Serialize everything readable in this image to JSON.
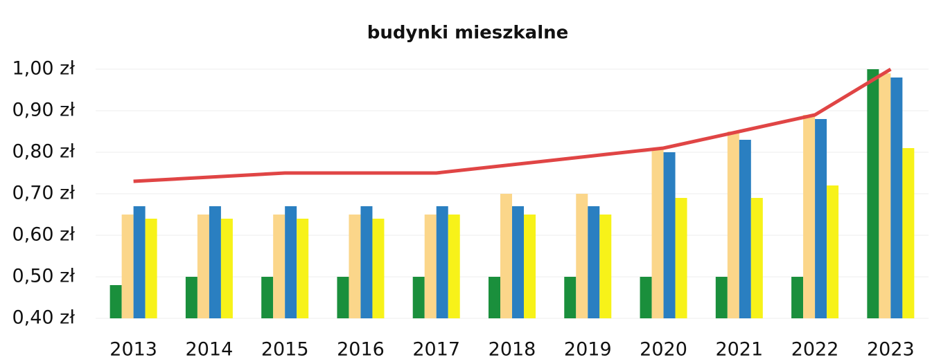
{
  "chart_data": {
    "type": "bar",
    "title": "budynki mieszkalne",
    "categories": [
      "2013",
      "2014",
      "2015",
      "2016",
      "2017",
      "2018",
      "2019",
      "2020",
      "2021",
      "2022",
      "2023"
    ],
    "series": [
      {
        "color": "#1a8f3c",
        "values": [
          0.48,
          0.5,
          0.5,
          0.5,
          0.5,
          0.5,
          0.5,
          0.5,
          0.5,
          0.5,
          1.0
        ]
      },
      {
        "color": "#fbd68a",
        "values": [
          0.65,
          0.65,
          0.65,
          0.65,
          0.65,
          0.7,
          0.7,
          0.81,
          0.85,
          0.89,
          0.99
        ]
      },
      {
        "color": "#2a7fc1",
        "values": [
          0.67,
          0.67,
          0.67,
          0.67,
          0.67,
          0.67,
          0.67,
          0.8,
          0.83,
          0.88,
          0.98
        ]
      },
      {
        "color": "#f7f219",
        "values": [
          0.64,
          0.64,
          0.64,
          0.64,
          0.65,
          0.65,
          0.65,
          0.69,
          0.69,
          0.72,
          0.81
        ]
      },
      {
        "type": "line",
        "color": "#e04545",
        "values": [
          0.73,
          0.74,
          0.75,
          0.75,
          0.75,
          0.77,
          0.79,
          0.81,
          0.85,
          0.89,
          1.0
        ]
      }
    ],
    "ylim": [
      0.4,
      1.0
    ],
    "yticks": [
      {
        "value": 0.4,
        "label": "0,40 zł"
      },
      {
        "value": 0.5,
        "label": "0,50 zł"
      },
      {
        "value": 0.6,
        "label": "0,60 zł"
      },
      {
        "value": 0.7,
        "label": "0,70 zł"
      },
      {
        "value": 0.8,
        "label": "0,80 zł"
      },
      {
        "value": 0.9,
        "label": "0,90 zł"
      },
      {
        "value": 1.0,
        "label": "1,00 zł"
      }
    ],
    "grid": true
  }
}
